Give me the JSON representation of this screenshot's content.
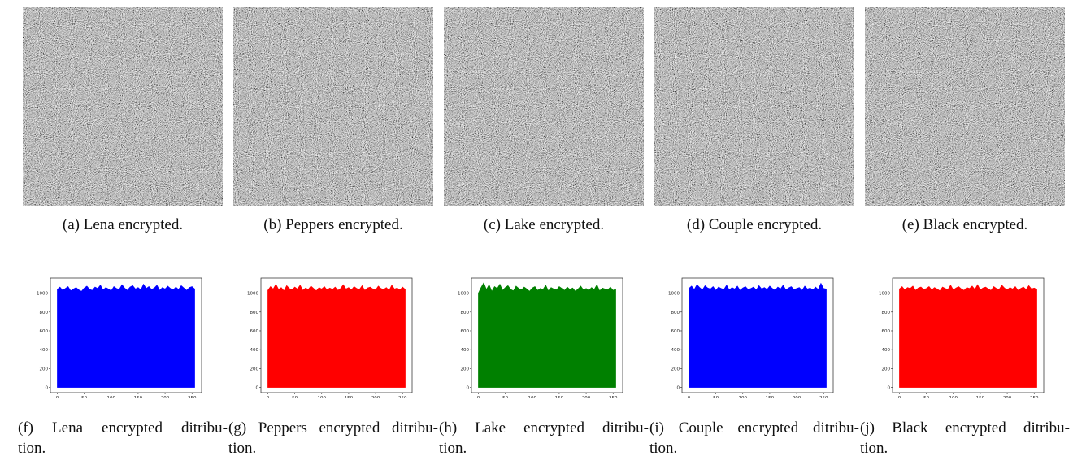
{
  "images": [
    {
      "caption": "(a)  Lena encrypted."
    },
    {
      "caption": "(b)  Peppers encrypted."
    },
    {
      "caption": "(c)  Lake encrypted."
    },
    {
      "caption": "(d)  Couple encrypted."
    },
    {
      "caption": "(e)  Black encrypted."
    }
  ],
  "chart_data": [
    {
      "type": "area",
      "color": "#0000ff",
      "caption_lines": [
        "(f)  Lena encrypted ditribu-",
        "tion."
      ],
      "x": [
        0,
        5,
        10,
        15,
        20,
        25,
        30,
        35,
        40,
        45,
        50,
        55,
        60,
        65,
        70,
        75,
        80,
        85,
        90,
        95,
        100,
        105,
        110,
        115,
        120,
        125,
        130,
        135,
        140,
        145,
        150,
        155,
        160,
        165,
        170,
        175,
        180,
        185,
        190,
        195,
        200,
        205,
        210,
        215,
        220,
        225,
        230,
        235,
        240,
        245,
        250,
        255
      ],
      "values": [
        1040,
        1065,
        1030,
        1050,
        1070,
        1025,
        1045,
        1060,
        1035,
        1020,
        1055,
        1075,
        1040,
        1030,
        1065,
        1050,
        1085,
        1035,
        1060,
        1045,
        1025,
        1070,
        1050,
        1040,
        1090,
        1055,
        1030,
        1065,
        1080,
        1045,
        1060,
        1035,
        1095,
        1050,
        1070,
        1040,
        1055,
        1085,
        1030,
        1060,
        1045,
        1075,
        1050,
        1035,
        1065,
        1040,
        1080,
        1055,
        1030,
        1060,
        1070,
        1045
      ],
      "xlim": [
        -12.75,
        267.75
      ],
      "ylim": [
        -55,
        1160
      ],
      "xticks": [
        0,
        50,
        100,
        150,
        200,
        250
      ],
      "yticks": [
        0,
        200,
        400,
        600,
        800,
        1000
      ]
    },
    {
      "type": "area",
      "color": "#ff0000",
      "caption_lines": [
        "(g)  Peppers encrypted ditribu-",
        "tion."
      ],
      "x": [
        0,
        5,
        10,
        15,
        20,
        25,
        30,
        35,
        40,
        45,
        50,
        55,
        60,
        65,
        70,
        75,
        80,
        85,
        90,
        95,
        100,
        105,
        110,
        115,
        120,
        125,
        130,
        135,
        140,
        145,
        150,
        155,
        160,
        165,
        170,
        175,
        180,
        185,
        190,
        195,
        200,
        205,
        210,
        215,
        220,
        225,
        230,
        235,
        240,
        245,
        250,
        255
      ],
      "values": [
        1030,
        1070,
        1045,
        1095,
        1040,
        1060,
        1025,
        1080,
        1050,
        1035,
        1065,
        1045,
        1085,
        1030,
        1055,
        1040,
        1075,
        1050,
        1025,
        1060,
        1045,
        1070,
        1035,
        1055,
        1040,
        1065,
        1030,
        1050,
        1090,
        1045,
        1060,
        1035,
        1070,
        1050,
        1040,
        1080,
        1030,
        1055,
        1065,
        1045,
        1035,
        1075,
        1050,
        1040,
        1060,
        1030,
        1085,
        1045,
        1055,
        1035,
        1065,
        1040
      ],
      "xlim": [
        -12.75,
        267.75
      ],
      "ylim": [
        -55,
        1160
      ],
      "xticks": [
        0,
        50,
        100,
        150,
        200,
        250
      ],
      "yticks": [
        0,
        200,
        400,
        600,
        800,
        1000
      ]
    },
    {
      "type": "area",
      "color": "#008000",
      "caption_lines": [
        "(h)  Lake encrypted ditribu-",
        "tion."
      ],
      "x": [
        0,
        5,
        10,
        15,
        20,
        25,
        30,
        35,
        40,
        45,
        50,
        55,
        60,
        65,
        70,
        75,
        80,
        85,
        90,
        95,
        100,
        105,
        110,
        115,
        120,
        125,
        130,
        135,
        140,
        145,
        150,
        155,
        160,
        165,
        170,
        175,
        180,
        185,
        190,
        195,
        200,
        205,
        210,
        215,
        220,
        225,
        230,
        235,
        240,
        245,
        250,
        255
      ],
      "values": [
        1000,
        1060,
        1110,
        1040,
        1090,
        1020,
        1070,
        1050,
        1095,
        1030,
        1060,
        1080,
        1040,
        1025,
        1075,
        1050,
        1035,
        1065,
        1045,
        1020,
        1055,
        1070,
        1030,
        1050,
        1040,
        1085,
        1025,
        1060,
        1045,
        1035,
        1070,
        1050,
        1030,
        1065,
        1040,
        1055,
        1020,
        1045,
        1075,
        1035,
        1050,
        1030,
        1060,
        1040,
        1090,
        1025,
        1055,
        1045,
        1035,
        1065,
        1030,
        1045
      ],
      "xlim": [
        -12.75,
        267.75
      ],
      "ylim": [
        -55,
        1160
      ],
      "xticks": [
        0,
        50,
        100,
        150,
        200,
        250
      ],
      "yticks": [
        0,
        200,
        400,
        600,
        800,
        1000
      ]
    },
    {
      "type": "area",
      "color": "#0000ff",
      "caption_lines": [
        "(i)  Couple encrypted ditribu-",
        "tion."
      ],
      "x": [
        0,
        5,
        10,
        15,
        20,
        25,
        30,
        35,
        40,
        45,
        50,
        55,
        60,
        65,
        70,
        75,
        80,
        85,
        90,
        95,
        100,
        105,
        110,
        115,
        120,
        125,
        130,
        135,
        140,
        145,
        150,
        155,
        160,
        165,
        170,
        175,
        180,
        185,
        190,
        195,
        200,
        205,
        210,
        215,
        220,
        225,
        230,
        235,
        240,
        245,
        250,
        255
      ],
      "values": [
        1050,
        1075,
        1040,
        1090,
        1060,
        1035,
        1080,
        1055,
        1045,
        1070,
        1030,
        1065,
        1050,
        1040,
        1085,
        1035,
        1060,
        1045,
        1075,
        1030,
        1055,
        1070,
        1040,
        1050,
        1065,
        1035,
        1080,
        1045,
        1060,
        1040,
        1075,
        1050,
        1030,
        1065,
        1045,
        1085,
        1035,
        1055,
        1070,
        1040,
        1050,
        1060,
        1030,
        1075,
        1045,
        1055,
        1035,
        1065,
        1040,
        1105,
        1050,
        1045
      ],
      "xlim": [
        -12.75,
        267.75
      ],
      "ylim": [
        -55,
        1160
      ],
      "xticks": [
        0,
        50,
        100,
        150,
        200,
        250
      ],
      "yticks": [
        0,
        200,
        400,
        600,
        800,
        1000
      ]
    },
    {
      "type": "area",
      "color": "#ff0000",
      "caption_lines": [
        "(j)  Black encrypted ditribu-",
        "tion."
      ],
      "x": [
        0,
        5,
        10,
        15,
        20,
        25,
        30,
        35,
        40,
        45,
        50,
        55,
        60,
        65,
        70,
        75,
        80,
        85,
        90,
        95,
        100,
        105,
        110,
        115,
        120,
        125,
        130,
        135,
        140,
        145,
        150,
        155,
        160,
        165,
        170,
        175,
        180,
        185,
        190,
        195,
        200,
        205,
        210,
        215,
        220,
        225,
        230,
        235,
        240,
        245,
        250,
        255
      ],
      "values": [
        1045,
        1070,
        1035,
        1060,
        1050,
        1075,
        1030,
        1055,
        1065,
        1040,
        1050,
        1070,
        1035,
        1060,
        1045,
        1025,
        1065,
        1050,
        1040,
        1085,
        1035,
        1055,
        1070,
        1045,
        1030,
        1060,
        1050,
        1075,
        1040,
        1090,
        1035,
        1055,
        1065,
        1045,
        1030,
        1070,
        1050,
        1040,
        1085,
        1055,
        1035,
        1060,
        1045,
        1070,
        1030,
        1050,
        1065,
        1040,
        1080,
        1045,
        1055,
        1040
      ],
      "xlim": [
        -12.75,
        267.75
      ],
      "ylim": [
        -55,
        1160
      ],
      "xticks": [
        0,
        50,
        100,
        150,
        200,
        250
      ],
      "yticks": [
        0,
        200,
        400,
        600,
        800,
        1000
      ]
    }
  ]
}
